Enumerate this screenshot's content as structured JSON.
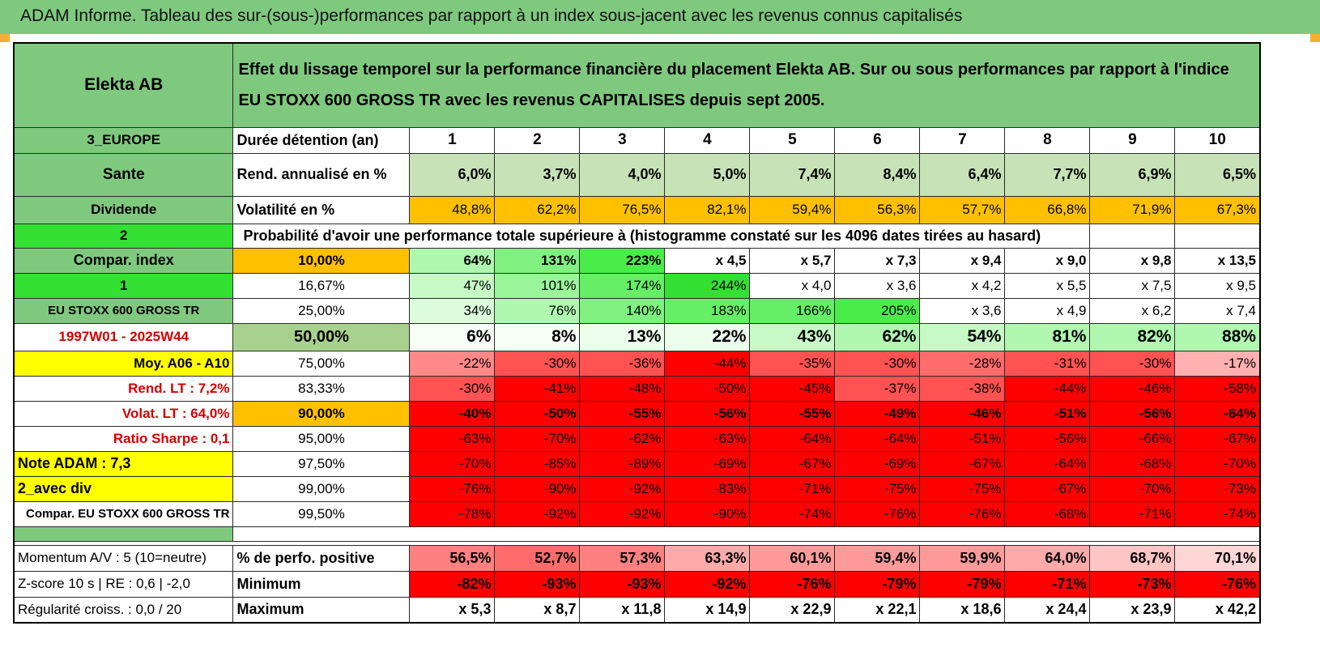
{
  "title": "ADAM Informe. Tableau des sur-(sous-)performances par rapport à un index sous-jacent avec les revenus connus capitalisés",
  "header": {
    "company": "Elekta AB",
    "description": "Effet du lissage temporel sur la performance financière du placement Elekta AB. Sur ou sous performances par rapport à l'indice EU STOXX 600 GROSS TR avec les revenus CAPITALISES depuis sept 2005."
  },
  "left_labels": {
    "region": "3_EUROPE",
    "sector": "Sante",
    "dividend": "Dividende",
    "val_2": "2",
    "compar_index": "Compar. index",
    "val_1": "1",
    "index_name": "EU STOXX 600 GROSS TR",
    "period": "1997W01 - 2025W44",
    "moy": "Moy. A06 - A10",
    "rend_lt": "Rend. LT :    7,2%",
    "volat_lt": "Volat. LT :    64,0%",
    "sharpe": "Ratio Sharpe :     0,1",
    "note": "Note ADAM : 7,3",
    "avec_div": "2_avec div",
    "compar_full": "Compar. EU STOXX 600 GROSS TR",
    "momentum": "Momentum A/V : 5 (10=neutre)",
    "zscore": "Z-score 10 s | RE : 0,6 | -2,0",
    "regularite": "Régularité croiss. : 0,0 / 20"
  },
  "row_labels": {
    "duree": "Durée détention (an)",
    "rend": "Rend. annualisé en %",
    "vol": "Volatilité en %",
    "proba": "Probabilité d'avoir une performance totale supérieure à (histogramme constaté sur les 4096 dates tirées au hasard)",
    "pos": "% de perfo. positive",
    "min": "Minimum",
    "max": "Maximum"
  },
  "years": [
    "1",
    "2",
    "3",
    "4",
    "5",
    "6",
    "7",
    "8",
    "9",
    "10"
  ],
  "rend": [
    "6,0%",
    "3,7%",
    "4,0%",
    "5,0%",
    "7,4%",
    "8,4%",
    "6,4%",
    "7,7%",
    "6,9%",
    "6,5%"
  ],
  "vol": [
    "48,8%",
    "62,2%",
    "76,5%",
    "82,1%",
    "59,4%",
    "56,3%",
    "57,7%",
    "66,8%",
    "71,9%",
    "67,3%"
  ],
  "quantiles": [
    {
      "p": "10,00%",
      "vals": [
        "64%",
        "131%",
        "223%",
        "x 4,5",
        "x 5,7",
        "x 7,3",
        "x 9,4",
        "x 9,0",
        "x 9,8",
        "x 13,5"
      ]
    },
    {
      "p": "16,67%",
      "vals": [
        "47%",
        "101%",
        "174%",
        "244%",
        "x 4,0",
        "x 3,6",
        "x 4,2",
        "x 5,5",
        "x 7,5",
        "x 9,5"
      ]
    },
    {
      "p": "25,00%",
      "vals": [
        "34%",
        "76%",
        "140%",
        "183%",
        "166%",
        "205%",
        "x 3,6",
        "x 4,9",
        "x 6,2",
        "x 7,4"
      ]
    },
    {
      "p": "50,00%",
      "vals": [
        "6%",
        "8%",
        "13%",
        "22%",
        "43%",
        "62%",
        "54%",
        "81%",
        "82%",
        "88%"
      ]
    },
    {
      "p": "75,00%",
      "vals": [
        "-22%",
        "-30%",
        "-36%",
        "-44%",
        "-35%",
        "-30%",
        "-28%",
        "-31%",
        "-30%",
        "-17%"
      ]
    },
    {
      "p": "83,33%",
      "vals": [
        "-30%",
        "-41%",
        "-48%",
        "-50%",
        "-45%",
        "-37%",
        "-38%",
        "-44%",
        "-46%",
        "-58%"
      ]
    },
    {
      "p": "90,00%",
      "vals": [
        "-40%",
        "-50%",
        "-55%",
        "-56%",
        "-55%",
        "-49%",
        "-46%",
        "-51%",
        "-56%",
        "-64%"
      ]
    },
    {
      "p": "95,00%",
      "vals": [
        "-63%",
        "-70%",
        "-62%",
        "-63%",
        "-64%",
        "-64%",
        "-51%",
        "-56%",
        "-66%",
        "-67%"
      ]
    },
    {
      "p": "97,50%",
      "vals": [
        "-70%",
        "-85%",
        "-89%",
        "-69%",
        "-67%",
        "-69%",
        "-67%",
        "-64%",
        "-68%",
        "-70%"
      ]
    },
    {
      "p": "99,00%",
      "vals": [
        "-76%",
        "-90%",
        "-92%",
        "-83%",
        "-71%",
        "-75%",
        "-75%",
        "-67%",
        "-70%",
        "-73%"
      ]
    },
    {
      "p": "99,50%",
      "vals": [
        "-78%",
        "-92%",
        "-92%",
        "-90%",
        "-74%",
        "-76%",
        "-76%",
        "-68%",
        "-71%",
        "-74%"
      ]
    }
  ],
  "pos": [
    "56,5%",
    "52,7%",
    "57,3%",
    "63,3%",
    "60,1%",
    "59,4%",
    "59,9%",
    "64,0%",
    "68,7%",
    "70,1%"
  ],
  "min": [
    "-82%",
    "-93%",
    "-93%",
    "-92%",
    "-76%",
    "-79%",
    "-79%",
    "-71%",
    "-73%",
    "-76%"
  ],
  "max": [
    "x 5,3",
    "x 8,7",
    "x 11,8",
    "x 14,9",
    "x 22,9",
    "x 22,1",
    "x 18,6",
    "x 24,4",
    "x 23,9",
    "x 42,2"
  ],
  "colors": {
    "header_green": "#7fc97f",
    "bright_green": "#33e033",
    "orange": "#ffc000",
    "yellow": "#ffff00",
    "red": "#ff0000",
    "label_red": "#d40000"
  }
}
